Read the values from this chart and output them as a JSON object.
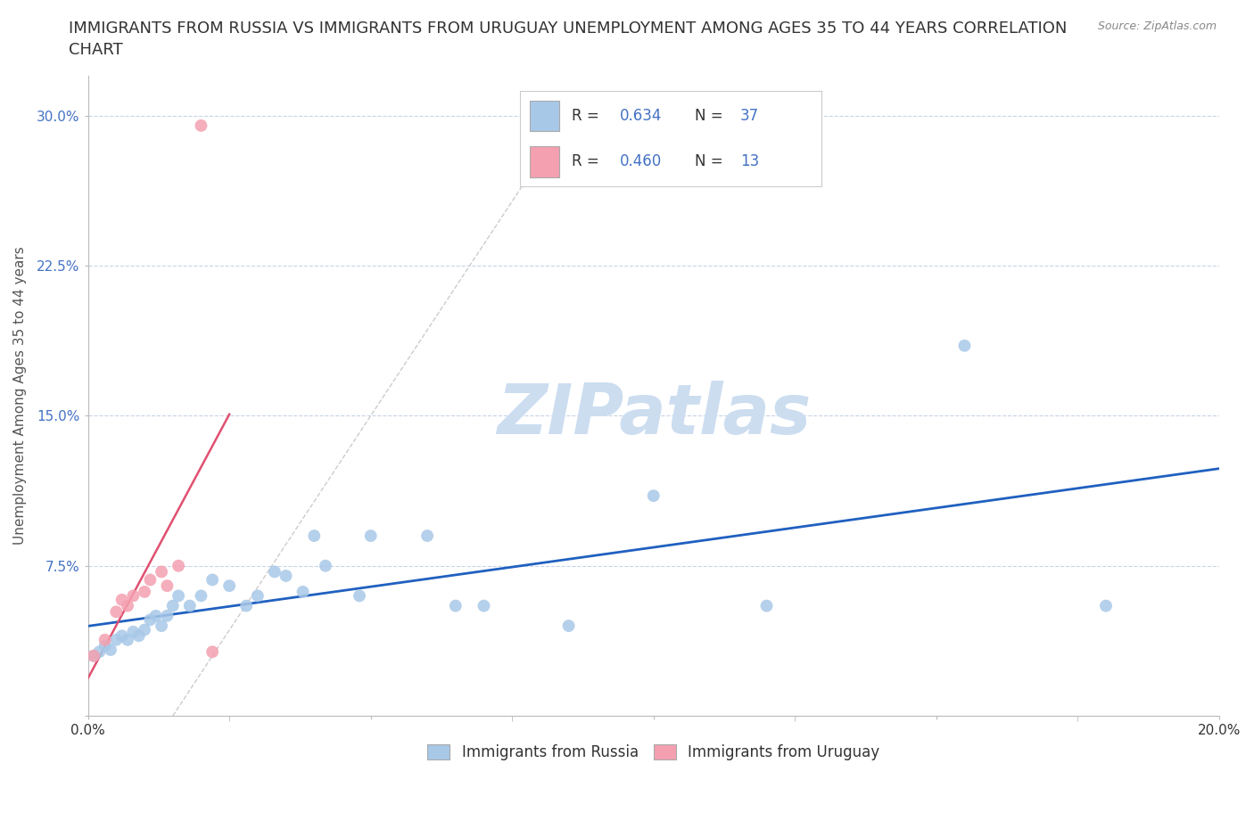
{
  "title": "IMMIGRANTS FROM RUSSIA VS IMMIGRANTS FROM URUGUAY UNEMPLOYMENT AMONG AGES 35 TO 44 YEARS CORRELATION\nCHART",
  "source": "Source: ZipAtlas.com",
  "ylabel": "Unemployment Among Ages 35 to 44 years",
  "xlim": [
    0.0,
    0.2
  ],
  "ylim": [
    0.0,
    0.32
  ],
  "xticks": [
    0.0,
    0.05,
    0.1,
    0.15,
    0.2
  ],
  "xtick_labels": [
    "0.0%",
    "",
    "",
    "",
    "20.0%"
  ],
  "yticks": [
    0.0,
    0.075,
    0.15,
    0.225,
    0.3
  ],
  "ytick_labels": [
    "",
    "7.5%",
    "15.0%",
    "22.5%",
    "30.0%"
  ],
  "russia_color": "#a8c8e8",
  "uruguay_color": "#f4a0b0",
  "russia_R": 0.634,
  "russia_N": 37,
  "uruguay_R": 0.46,
  "uruguay_N": 13,
  "russia_line_color": "#2060c0",
  "uruguay_line_color": "#e05070",
  "russia_x": [
    0.001,
    0.002,
    0.003,
    0.004,
    0.005,
    0.006,
    0.007,
    0.008,
    0.009,
    0.01,
    0.011,
    0.012,
    0.013,
    0.014,
    0.015,
    0.016,
    0.018,
    0.02,
    0.022,
    0.025,
    0.028,
    0.03,
    0.033,
    0.035,
    0.038,
    0.04,
    0.042,
    0.048,
    0.05,
    0.06,
    0.065,
    0.07,
    0.085,
    0.1,
    0.12,
    0.155,
    0.18
  ],
  "russia_y": [
    0.03,
    0.032,
    0.035,
    0.033,
    0.038,
    0.04,
    0.038,
    0.042,
    0.04,
    0.043,
    0.048,
    0.05,
    0.045,
    0.05,
    0.055,
    0.06,
    0.055,
    0.06,
    0.068,
    0.065,
    0.055,
    0.06,
    0.072,
    0.07,
    0.062,
    0.09,
    0.075,
    0.06,
    0.09,
    0.09,
    0.055,
    0.055,
    0.045,
    0.11,
    0.055,
    0.185,
    0.055
  ],
  "uruguay_x": [
    0.001,
    0.003,
    0.005,
    0.006,
    0.007,
    0.008,
    0.01,
    0.011,
    0.013,
    0.014,
    0.016,
    0.02,
    0.022
  ],
  "uruguay_y": [
    0.03,
    0.038,
    0.052,
    0.058,
    0.055,
    0.06,
    0.062,
    0.068,
    0.072,
    0.065,
    0.075,
    0.295,
    0.032
  ],
  "grid_color": "#c8d4e8",
  "background_color": "#ffffff",
  "title_fontsize": 13,
  "axis_label_fontsize": 11,
  "tick_fontsize": 11,
  "legend_color": "#4472c4",
  "watermark_color": "#ccddf0"
}
